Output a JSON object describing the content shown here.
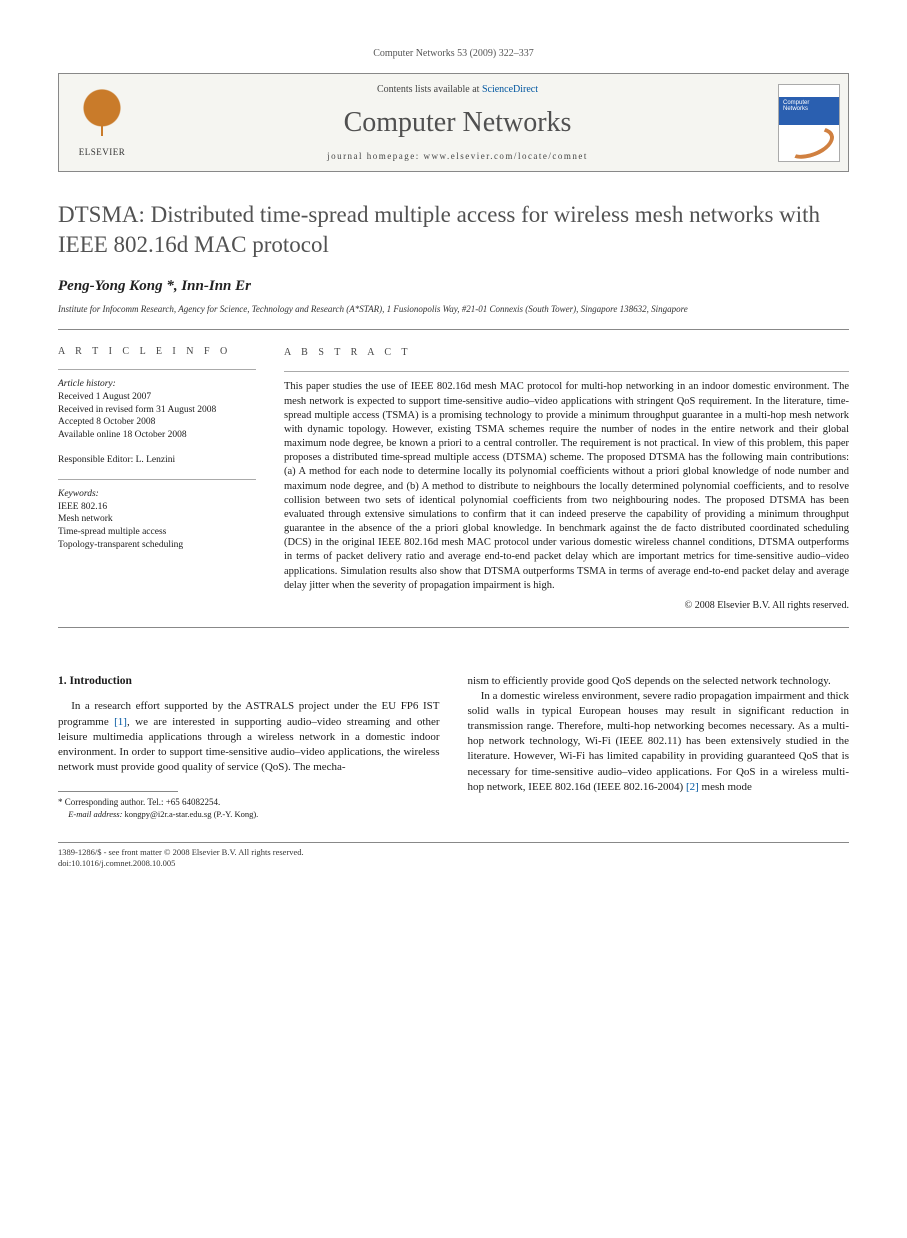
{
  "header_citation": "Computer Networks 53 (2009) 322–337",
  "masthead": {
    "contents_text": "Contents lists available at ",
    "sciencedirect": "ScienceDirect",
    "journal": "Computer Networks",
    "homepage_label": "journal homepage: www.elsevier.com/locate/comnet",
    "publisher": "ELSEVIER",
    "cover_label": "Computer Networks"
  },
  "title": "DTSMA: Distributed time-spread multiple access for wireless mesh networks with IEEE 802.16d MAC protocol",
  "authors": "Peng-Yong Kong *, Inn-Inn Er",
  "affiliation": "Institute for Infocomm Research, Agency for Science, Technology and Research (A*STAR), 1 Fusionopolis Way, #21-01 Connexis (South Tower), Singapore 138632, Singapore",
  "info_heading": "A R T I C L E   I N F O",
  "abs_heading": "A B S T R A C T",
  "history": {
    "hd": "Article history:",
    "l1": "Received 1 August 2007",
    "l2": "Received in revised form 31 August 2008",
    "l3": "Accepted 8 October 2008",
    "l4": "Available online 18 October 2008"
  },
  "editor": "Responsible Editor: L. Lenzini",
  "keywords": {
    "hd": "Keywords:",
    "k1": "IEEE 802.16",
    "k2": "Mesh network",
    "k3": "Time-spread multiple access",
    "k4": "Topology-transparent scheduling"
  },
  "abstract": "This paper studies the use of IEEE 802.16d mesh MAC protocol for multi-hop networking in an indoor domestic environment. The mesh network is expected to support time-sensitive audio–video applications with stringent QoS requirement. In the literature, time-spread multiple access (TSMA) is a promising technology to provide a minimum throughput guarantee in a multi-hop mesh network with dynamic topology. However, existing TSMA schemes require the number of nodes in the entire network and their global maximum node degree, be known a priori to a central controller. The requirement is not practical. In view of this problem, this paper proposes a distributed time-spread multiple access (DTSMA) scheme. The proposed DTSMA has the following main contributions: (a) A method for each node to determine locally its polynomial coefficients without a priori global knowledge of node number and maximum node degree, and (b) A method to distribute to neighbours the locally determined polynomial coefficients, and to resolve collision between two sets of identical polynomial coefficients from two neighbouring nodes. The proposed DTSMA has been evaluated through extensive simulations to confirm that it can indeed preserve the capability of providing a minimum throughput guarantee in the absence of the a priori global knowledge. In benchmark against the de facto distributed coordinated scheduling (DCS) in the original IEEE 802.16d mesh MAC protocol under various domestic wireless channel conditions, DTSMA outperforms in terms of packet delivery ratio and average end-to-end packet delay which are important metrics for time-sensitive audio–video applications. Simulation results also show that DTSMA outperforms TSMA in terms of average end-to-end packet delay and average delay jitter when the severity of propagation impairment is high.",
  "copyright_line": "© 2008 Elsevier B.V. All rights reserved.",
  "intro_heading": "1. Introduction",
  "intro_p1a": "In a research effort supported by the ASTRALS project under the EU FP6 IST programme ",
  "intro_ref1": "[1]",
  "intro_p1b": ", we are interested in supporting audio–video streaming and other leisure multimedia applications through a wireless network in a domestic indoor environment. In order to support time-sensitive audio–video applications, the wireless network must provide good quality of service (QoS). The mecha-",
  "intro_p2": "nism to efficiently provide good QoS depends on the selected network technology.",
  "intro_p3a": "In a domestic wireless environment, severe radio propagation impairment and thick solid walls in typical European houses may result in significant reduction in transmission range. Therefore, multi-hop networking becomes necessary. As a multi-hop network technology, Wi-Fi (IEEE 802.11) has been extensively studied in the literature. However, Wi-Fi has limited capability in providing guaranteed QoS that is necessary for time-sensitive audio–video applications. For QoS in a wireless multi-hop network, IEEE 802.16d (IEEE 802.16-2004) ",
  "intro_ref2": "[2]",
  "intro_p3b": " mesh mode",
  "footnote": {
    "corr": "* Corresponding author. Tel.: +65 64082254.",
    "email_label": "E-mail address:",
    "email": " kongpy@i2r.a-star.edu.sg ",
    "email_tail": "(P.-Y. Kong)."
  },
  "bottom": {
    "l1": "1389-1286/$ - see front matter © 2008 Elsevier B.V. All rights reserved.",
    "l2": "doi:10.1016/j.comnet.2008.10.005"
  }
}
